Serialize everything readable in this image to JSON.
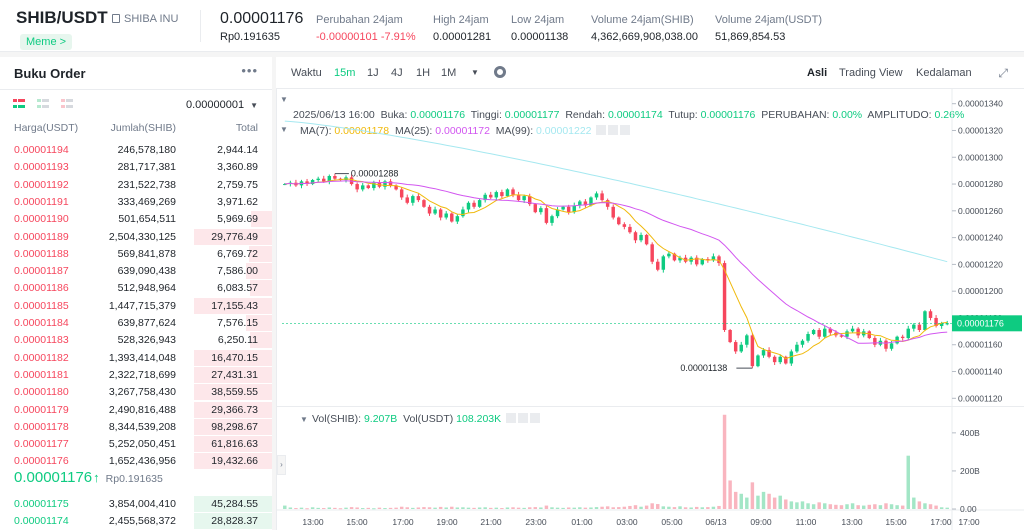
{
  "header": {
    "pair": "SHIB/USDT",
    "full_name": "SHIBA INU",
    "tag": "Meme >",
    "last_price": "0.00001176",
    "last_price_idr": "Rp0.191635",
    "stats": [
      {
        "label": "Perubahan 24jam",
        "value": "-0.00000101 -7.91%",
        "color": "red"
      },
      {
        "label": "High 24jam",
        "value": "0.00001281",
        "color": ""
      },
      {
        "label": "Low 24jam",
        "value": "0.00001138",
        "color": ""
      },
      {
        "label": "Volume 24jam(SHIB)",
        "value": "4,362,669,908,038.00",
        "color": ""
      },
      {
        "label": "Volume 24jam(USDT)",
        "value": "51,869,854.53",
        "color": ""
      }
    ]
  },
  "orderbook": {
    "title": "Buku Order",
    "more": "•••",
    "precision": "0.00000001",
    "columns": {
      "price": "Harga(USDT)",
      "amount": "Jumlah(SHIB)",
      "total": "Total"
    },
    "asks": [
      {
        "price": "0.00001194",
        "amount": "246,578,180",
        "total": "2,944.14",
        "depth": 0
      },
      {
        "price": "0.00001193",
        "amount": "281,717,381",
        "total": "3,360.89",
        "depth": 0
      },
      {
        "price": "0.00001192",
        "amount": "231,522,738",
        "total": "2,759.75",
        "depth": 0
      },
      {
        "price": "0.00001191",
        "amount": "333,469,269",
        "total": "3,971.62",
        "depth": 0
      },
      {
        "price": "0.00001190",
        "amount": "501,654,511",
        "total": "5,969.69",
        "depth": 0.27
      },
      {
        "price": "0.00001189",
        "amount": "2,504,330,125",
        "total": "29,776.49",
        "depth": 1
      },
      {
        "price": "0.00001188",
        "amount": "569,841,878",
        "total": "6,769.72",
        "depth": 0.3
      },
      {
        "price": "0.00001187",
        "amount": "639,090,438",
        "total": "7,586.00",
        "depth": 0.33
      },
      {
        "price": "0.00001186",
        "amount": "512,948,964",
        "total": "6,083.57",
        "depth": 0.28
      },
      {
        "price": "0.00001185",
        "amount": "1,447,715,379",
        "total": "17,155.43",
        "depth": 1
      },
      {
        "price": "0.00001184",
        "amount": "639,877,624",
        "total": "7,576.15",
        "depth": 0.33
      },
      {
        "price": "0.00001183",
        "amount": "528,326,943",
        "total": "6,250.11",
        "depth": 0.28
      },
      {
        "price": "0.00001182",
        "amount": "1,393,414,048",
        "total": "16,470.15",
        "depth": 1
      },
      {
        "price": "0.00001181",
        "amount": "2,322,718,699",
        "total": "27,431.31",
        "depth": 1
      },
      {
        "price": "0.00001180",
        "amount": "3,267,758,430",
        "total": "38,559.55",
        "depth": 1
      },
      {
        "price": "0.00001179",
        "amount": "2,490,816,488",
        "total": "29,366.73",
        "depth": 1
      },
      {
        "price": "0.00001178",
        "amount": "8,344,539,208",
        "total": "98,298.67",
        "depth": 1
      },
      {
        "price": "0.00001177",
        "amount": "5,252,050,451",
        "total": "61,816.63",
        "depth": 1
      },
      {
        "price": "0.00001176",
        "amount": "1,652,436,956",
        "total": "19,432.66",
        "depth": 1
      }
    ],
    "mid": {
      "price": "0.00001176",
      "arrow": "↑",
      "idr": "Rp0.191635"
    },
    "bids": [
      {
        "price": "0.00001175",
        "amount": "3,854,004,410",
        "total": "45,284.55",
        "depth": 1
      },
      {
        "price": "0.00001174",
        "amount": "2,455,568,372",
        "total": "28,828.37",
        "depth": 1
      }
    ]
  },
  "chart": {
    "toolbar": {
      "time_label": "Waktu",
      "intervals": [
        "15m",
        "1J",
        "4J",
        "1H",
        "1M"
      ],
      "active_interval": "15m",
      "views": [
        "Asli",
        "Trading View",
        "Kedalaman"
      ],
      "active_view": "Asli"
    },
    "ohlc": {
      "date": "2025/06/13 16:00",
      "open_label": "Buka:",
      "open": "0.00001176",
      "high_label": "Tinggi:",
      "high": "0.00001177",
      "low_label": "Rendah:",
      "low": "0.00001174",
      "close_label": "Tutup:",
      "close": "0.00001176",
      "change_label": "PERUBAHAN:",
      "change": "0.00%",
      "amp_label": "AMPLITUDO:",
      "amp": "0.26%"
    },
    "ma": {
      "ma7_label": "MA(7):",
      "ma7": "0.00001178",
      "ma25_label": "MA(25):",
      "ma25": "0.00001172",
      "ma99_label": "MA(99):",
      "ma99": "0.00001222"
    },
    "vol": {
      "shib_label": "Vol(SHIB):",
      "shib": "9.207B",
      "usdt_label": "Vol(USDT)",
      "usdt": "108.203K"
    },
    "price_ticks": [
      "0.00001340",
      "0.00001320",
      "0.00001300",
      "0.00001280",
      "0.00001260",
      "0.00001240",
      "0.00001220",
      "0.00001200",
      "0.00001180",
      "0.00001160",
      "0.00001140",
      "0.00001120"
    ],
    "current_price_label": "0.00001176",
    "high_marker": "0.00001288",
    "low_marker": "0.00001138",
    "vol_ticks": [
      "400B",
      "200B",
      "0.00"
    ],
    "time_ticks": [
      "13:00",
      "15:00",
      "17:00",
      "19:00",
      "21:00",
      "23:00",
      "01:00",
      "03:00",
      "05:00",
      "06/13",
      "09:00",
      "11:00",
      "13:00",
      "15:00",
      "17:00",
      "17:00"
    ],
    "colors": {
      "up": "#0ecb81",
      "down": "#f6465d",
      "ma7": "#f0b90b",
      "ma25": "#d256f0",
      "ma99": "#a5e8f0"
    }
  },
  "chart_data": {
    "type": "candlestick",
    "x_label": "",
    "y_label": "",
    "ylim": [
      1.115e-05,
      1.345e-05
    ],
    "vol_ylim": [
      0,
      520
    ],
    "close": [
      1.28e-05,
      1.281e-05,
      1.279e-05,
      1.282e-05,
      1.28e-05,
      1.283e-05,
      1.284e-05,
      1.282e-05,
      1.286e-05,
      1.284e-05,
      1.283e-05,
      1.285e-05,
      1.28e-05,
      1.276e-05,
      1.279e-05,
      1.277e-05,
      1.281e-05,
      1.278e-05,
      1.282e-05,
      1.279e-05,
      1.276e-05,
      1.27e-05,
      1.266e-05,
      1.271e-05,
      1.268e-05,
      1.263e-05,
      1.258e-05,
      1.261e-05,
      1.255e-05,
      1.258e-05,
      1.252e-05,
      1.256e-05,
      1.261e-05,
      1.266e-05,
      1.263e-05,
      1.268e-05,
      1.272e-05,
      1.27e-05,
      1.274e-05,
      1.271e-05,
      1.276e-05,
      1.272e-05,
      1.268e-05,
      1.271e-05,
      1.265e-05,
      1.259e-05,
      1.262e-05,
      1.251e-05,
      1.256e-05,
      1.261e-05,
      1.263e-05,
      1.259e-05,
      1.264e-05,
      1.267e-05,
      1.264e-05,
      1.27e-05,
      1.273e-05,
      1.268e-05,
      1.263e-05,
      1.255e-05,
      1.25e-05,
      1.248e-05,
      1.244e-05,
      1.238e-05,
      1.242e-05,
      1.235e-05,
      1.222e-05,
      1.216e-05,
      1.226e-05,
      1.228e-05,
      1.223e-05,
      1.225e-05,
      1.222e-05,
      1.225e-05,
      1.22e-05,
      1.224e-05,
      1.223e-05,
      1.226e-05,
      1.221e-05,
      1.171e-05,
      1.162e-05,
      1.155e-05,
      1.16e-05,
      1.167e-05,
      1.144e-05,
      1.152e-05,
      1.156e-05,
      1.151e-05,
      1.147e-05,
      1.151e-05,
      1.146e-05,
      1.155e-05,
      1.16e-05,
      1.163e-05,
      1.168e-05,
      1.171e-05,
      1.166e-05,
      1.172e-05,
      1.169e-05,
      1.167e-05,
      1.166e-05,
      1.17e-05,
      1.172e-05,
      1.167e-05,
      1.17e-05,
      1.165e-05,
      1.16e-05,
      1.163e-05,
      1.157e-05,
      1.161e-05,
      1.166e-05,
      1.165e-05,
      1.172e-05,
      1.175e-05,
      1.171e-05,
      1.185e-05,
      1.18e-05,
      1.174e-05,
      1.176e-05,
      1.176e-05
    ],
    "volume": [
      18,
      8,
      5,
      7,
      4,
      9,
      6,
      5,
      8,
      6,
      4,
      7,
      10,
      8,
      5,
      6,
      4,
      7,
      5,
      6,
      7,
      12,
      9,
      6,
      8,
      10,
      9,
      7,
      11,
      8,
      12,
      8,
      9,
      7,
      6,
      8,
      9,
      6,
      7,
      5,
      8,
      9,
      7,
      6,
      9,
      10,
      8,
      18,
      9,
      7,
      6,
      8,
      7,
      9,
      7,
      8,
      10,
      12,
      14,
      9,
      10,
      12,
      16,
      20,
      12,
      18,
      30,
      26,
      14,
      12,
      10,
      14,
      9,
      8,
      11,
      9,
      10,
      12,
      16,
      495,
      150,
      90,
      80,
      60,
      140,
      70,
      90,
      80,
      60,
      70,
      50,
      40,
      35,
      40,
      30,
      25,
      35,
      30,
      25,
      22,
      20,
      25,
      30,
      20,
      18,
      22,
      25,
      20,
      30,
      25,
      20,
      18,
      280,
      60,
      40,
      30,
      25,
      18,
      9,
      7
    ]
  }
}
